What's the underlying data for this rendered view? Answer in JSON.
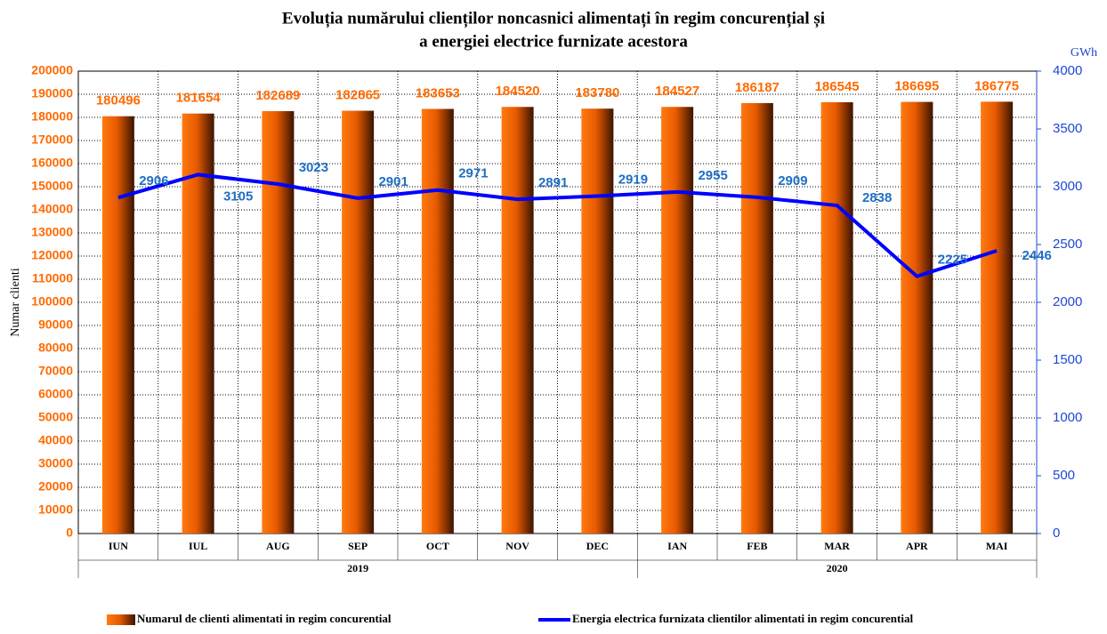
{
  "chart_data": {
    "type": "bar",
    "title": [
      "Evoluția numărului clienților noncasnici alimentați în regim concurențial și",
      "a energiei electrice furnizate acestora"
    ],
    "ylabel": "Numar clienti",
    "y2label": "GWh",
    "categories": [
      "IUN",
      "IUL",
      "AUG",
      "SEP",
      "OCT",
      "NOV",
      "DEC",
      "IAN",
      "FEB",
      "MAR",
      "APR",
      "MAI"
    ],
    "x_groups": [
      {
        "label": "2019",
        "size": 7
      },
      {
        "label": "2020",
        "size": 5
      }
    ],
    "series": [
      {
        "name": "Numarul de clienti alimentati in regim concurential",
        "type": "bar",
        "color": "#ff6a00",
        "values": [
          180496,
          181654,
          182689,
          182865,
          183653,
          184520,
          183780,
          184527,
          186187,
          186545,
          186695,
          186775
        ]
      },
      {
        "name": "Energia electrica furnizata clientilor alimentati in regim concurential",
        "type": "line",
        "axis": "y2",
        "color": "#0000ff",
        "values": [
          2906,
          3105,
          3023,
          2901,
          2971,
          2891,
          2919,
          2955,
          2909,
          2838,
          2225,
          2446
        ]
      }
    ],
    "ylim": [
      0,
      200000
    ],
    "yticks": [
      0,
      10000,
      20000,
      30000,
      40000,
      50000,
      60000,
      70000,
      80000,
      90000,
      100000,
      110000,
      120000,
      130000,
      140000,
      150000,
      160000,
      170000,
      180000,
      190000,
      200000
    ],
    "y2lim": [
      0,
      4000
    ],
    "y2ticks": [
      0,
      500,
      1000,
      1500,
      2000,
      2500,
      3000,
      3500,
      4000
    ],
    "grid": true
  }
}
